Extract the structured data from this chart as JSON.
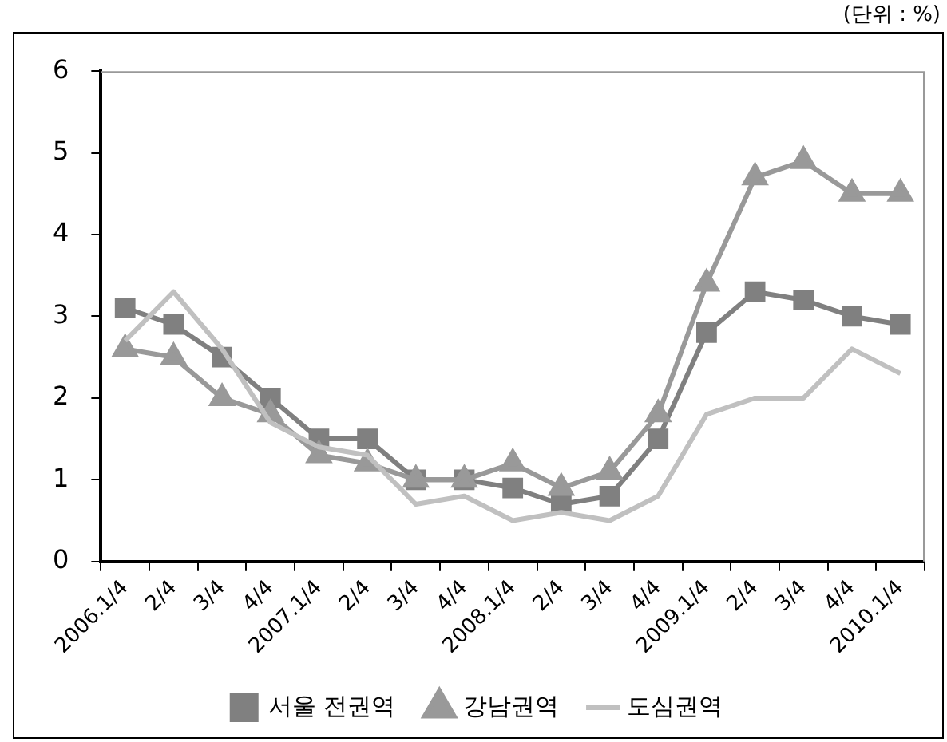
{
  "chart_data": {
    "type": "line",
    "annotations": [
      "(단위 : %)"
    ],
    "categories": [
      "2006.1/4",
      "2/4",
      "3/4",
      "4/4",
      "2007.1/4",
      "2/4",
      "3/4",
      "4/4",
      "2008.1/4",
      "2/4",
      "3/4",
      "4/4",
      "2009.1/4",
      "2/4",
      "3/4",
      "4/4",
      "2010.1/4"
    ],
    "series": [
      {
        "name": "서울 전권역",
        "color": "#808080",
        "marker": "square",
        "values": [
          3.1,
          2.9,
          2.5,
          2.0,
          1.5,
          1.5,
          1.0,
          1.0,
          0.9,
          0.7,
          0.8,
          1.5,
          2.8,
          3.3,
          3.2,
          3.0,
          2.9
        ]
      },
      {
        "name": "강남권역",
        "color": "#999999",
        "marker": "triangle",
        "values": [
          2.6,
          2.5,
          2.0,
          1.8,
          1.3,
          1.2,
          1.0,
          1.0,
          1.2,
          0.9,
          1.1,
          1.8,
          3.4,
          4.7,
          4.9,
          4.5,
          4.5
        ]
      },
      {
        "name": "도심권역",
        "color": "#c0c0c0",
        "marker": "none",
        "values": [
          2.7,
          3.3,
          2.6,
          1.7,
          1.4,
          1.3,
          0.7,
          0.8,
          0.5,
          0.6,
          0.5,
          0.8,
          1.8,
          2.0,
          2.0,
          2.6,
          2.3
        ]
      }
    ],
    "ylim": [
      0,
      6
    ],
    "yticks": [
      0,
      1,
      2,
      3,
      4,
      5,
      6
    ],
    "grid": false,
    "legend": "bottom"
  }
}
